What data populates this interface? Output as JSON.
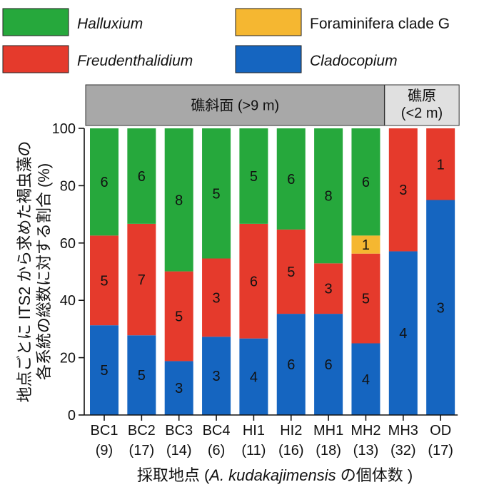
{
  "chart_data": {
    "type": "bar",
    "stacked": true,
    "xlabel_parts": [
      "採取地点 (",
      "A. kudakajimensis",
      " の個体数 )"
    ],
    "ylabel_lines": [
      "地点ごとに ITS2 から求めた褐虫藻の",
      "各系統の総数に対する割合 (%)"
    ],
    "ylim": [
      0,
      100
    ],
    "yticks": [
      "0",
      "20",
      "40",
      "60",
      "80",
      "100"
    ],
    "categories": [
      "BC1",
      "BC2",
      "BC3",
      "BC4",
      "HI1",
      "HI2",
      "MH1",
      "MH2",
      "MH3",
      "OD"
    ],
    "category_counts": [
      "(9)",
      "(17)",
      "(14)",
      "(6)",
      "(11)",
      "(16)",
      "(18)",
      "(13)",
      "(32)",
      "(17)"
    ],
    "series": [
      {
        "name": "Cladocopium",
        "color": "#1565c0",
        "counts": [
          5,
          5,
          3,
          3,
          4,
          6,
          6,
          4,
          4,
          3
        ],
        "percent": [
          31.3,
          27.8,
          18.8,
          27.3,
          26.7,
          35.3,
          35.3,
          25.0,
          57.1,
          75.0
        ]
      },
      {
        "name": "Freudenthalidium",
        "color": "#e53a2c",
        "counts": [
          5,
          7,
          5,
          3,
          6,
          5,
          3,
          5,
          3,
          1
        ],
        "percent": [
          31.3,
          38.9,
          31.3,
          27.3,
          40.0,
          29.4,
          17.6,
          31.3,
          42.9,
          25.0
        ]
      },
      {
        "name": "Foraminifera clade G",
        "color": "#f5b731",
        "counts": [
          0,
          0,
          0,
          0,
          0,
          0,
          0,
          1,
          0,
          0
        ],
        "percent": [
          0,
          0,
          0,
          0,
          0,
          0,
          0,
          6.3,
          0,
          0
        ]
      },
      {
        "name": "Halluxium",
        "color": "#26a83c",
        "counts": [
          6,
          6,
          8,
          5,
          5,
          6,
          8,
          6,
          0,
          0
        ],
        "percent": [
          37.4,
          33.3,
          49.9,
          45.4,
          33.3,
          35.3,
          47.1,
          37.4,
          0,
          0
        ]
      }
    ],
    "legend": [
      {
        "name": "Halluxium",
        "color": "#26a83c",
        "italic": true
      },
      {
        "name": "Foraminifera clade G",
        "color": "#f5b731",
        "italic": false
      },
      {
        "name": "Freudenthalidium",
        "color": "#e53a2c",
        "italic": true
      },
      {
        "name": "Cladocopium",
        "color": "#1565c0",
        "italic": true
      }
    ],
    "groups": [
      {
        "label_lines": [
          "礁斜面 (>9 m)"
        ],
        "categories": [
          "BC1",
          "BC2",
          "BC3",
          "BC4",
          "HI1",
          "HI2",
          "MH1",
          "MH2"
        ],
        "color": "#a8a8a8"
      },
      {
        "label_lines": [
          "礁原",
          "(<2 m)"
        ],
        "categories": [
          "MH3",
          "OD"
        ],
        "color": "#e0e0e0"
      }
    ]
  }
}
